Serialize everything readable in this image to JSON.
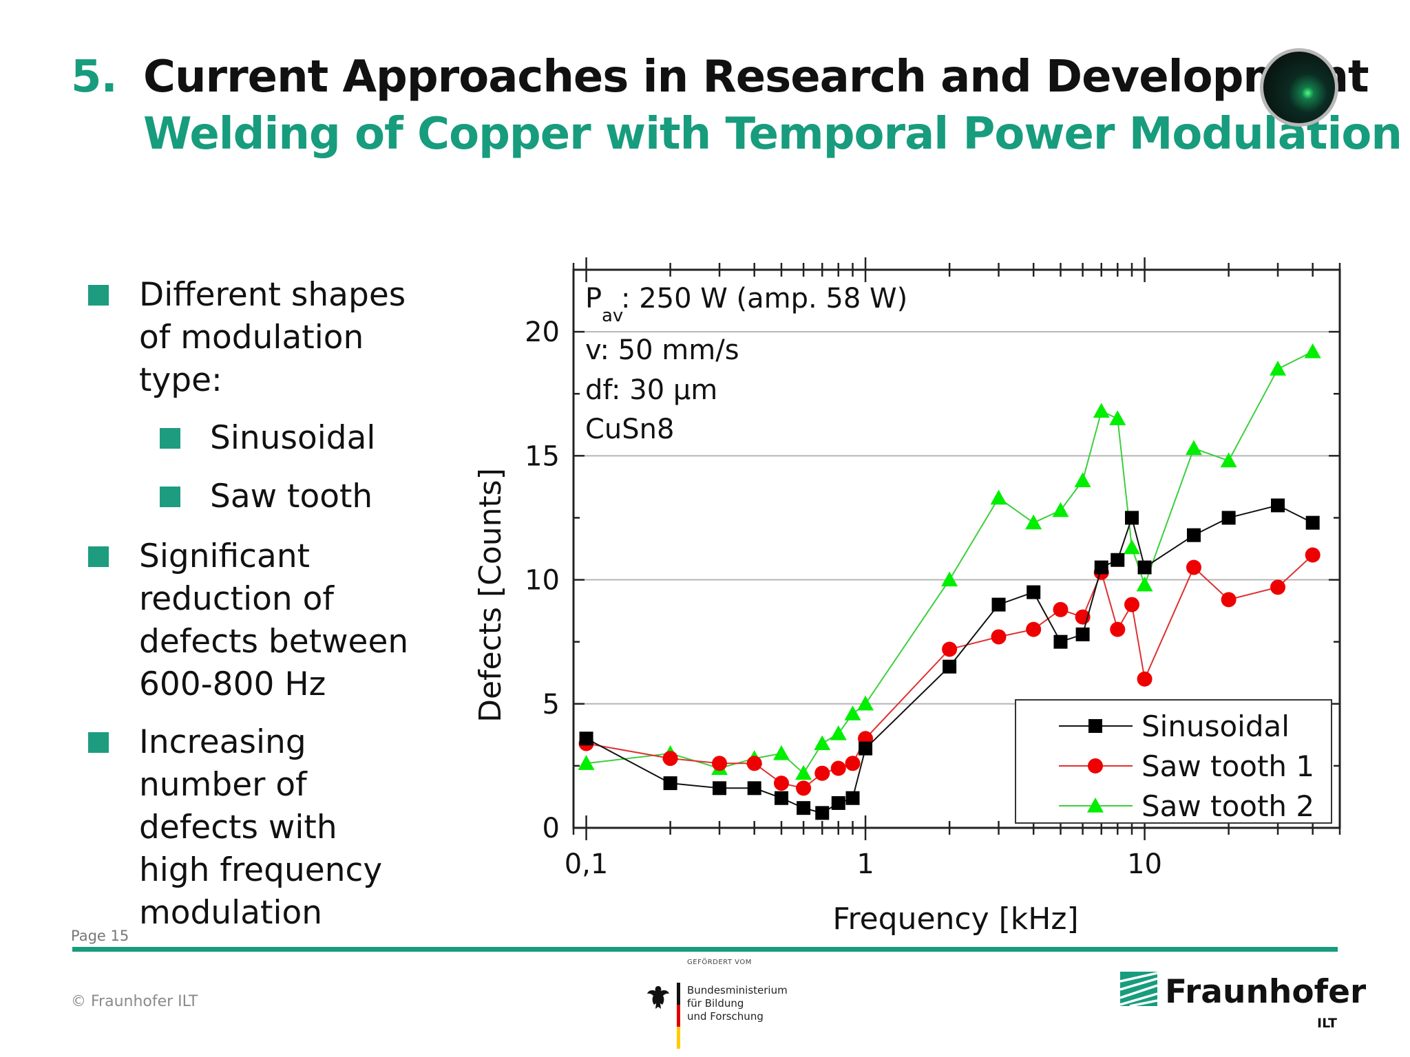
{
  "slide": {
    "number": "5.",
    "title": "Current Approaches in Research and Development",
    "subtitle": "Welding of Copper with Temporal Power Modulation",
    "page_label": "Page 15",
    "copyright": "© Fraunhofer ILT",
    "accent_color": "#179c7d"
  },
  "bullets": {
    "b1_lines": [
      "Different shapes",
      "of modulation",
      "type:"
    ],
    "sub1": "Sinusoidal",
    "sub2": "Saw tooth",
    "b2_lines": [
      "Significant",
      "reduction of",
      "defects between",
      "600-800 Hz"
    ],
    "b3_lines": [
      "Increasing",
      "number of",
      "defects with",
      "high frequency",
      "modulation"
    ]
  },
  "footer": {
    "bmbf_top": "GEFÖRDERT VOM",
    "bmbf_lines": [
      "Bundesministerium",
      "für Bildung",
      "und Forschung"
    ],
    "fraunhofer_name": "Fraunhofer",
    "fraunhofer_sub": "ILT",
    "eagle_icon": "federal-eagle-icon"
  },
  "chart_data": {
    "type": "line",
    "xlabel": "Frequency [kHz]",
    "ylabel": "Defects [Counts]",
    "xscale": "log",
    "xlim": [
      0.09,
      50
    ],
    "ylim": [
      0,
      22.5
    ],
    "x_tick_labels": [
      "0,1",
      "1",
      "10"
    ],
    "y_tick_labels": [
      "0",
      "5",
      "10",
      "15",
      "20"
    ],
    "grid": "horizontal",
    "legend_position": "bottom-right",
    "annotations": {
      "pav_main": "P",
      "pav_sub": "av",
      "pav_rest": ": 250 W (amp. 58 W)",
      "velocity": "v: 50 mm/s",
      "focus": "df: 30 µm",
      "material": "CuSn8"
    },
    "series": [
      {
        "name": "Sinusoidal",
        "color": "#000000",
        "line_color": "#111111",
        "marker": "square",
        "x": [
          0.1,
          0.2,
          0.3,
          0.4,
          0.5,
          0.6,
          0.7,
          0.8,
          0.9,
          1,
          2,
          3,
          4,
          5,
          6,
          7,
          8,
          9,
          10,
          15,
          20,
          30,
          40
        ],
        "y": [
          3.6,
          1.8,
          1.6,
          1.6,
          1.2,
          0.8,
          0.6,
          1.0,
          1.2,
          3.2,
          6.5,
          9.0,
          9.5,
          7.5,
          7.8,
          10.5,
          10.8,
          12.5,
          10.5,
          11.8,
          12.5,
          13.0,
          12.3
        ]
      },
      {
        "name": "Saw tooth 1",
        "color": "#ee0000",
        "line_color": "#e03030",
        "marker": "circle",
        "x": [
          0.1,
          0.2,
          0.3,
          0.4,
          0.5,
          0.6,
          0.7,
          0.8,
          0.9,
          1,
          2,
          3,
          4,
          5,
          6,
          7,
          8,
          9,
          10,
          15,
          20,
          30,
          40
        ],
        "y": [
          3.4,
          2.8,
          2.6,
          2.6,
          1.8,
          1.6,
          2.2,
          2.4,
          2.6,
          3.6,
          7.2,
          7.7,
          8.0,
          8.8,
          8.5,
          10.3,
          8.0,
          9.0,
          6.0,
          10.5,
          9.2,
          9.7,
          11.0
        ]
      },
      {
        "name": "Saw tooth 2",
        "color": "#00ee00",
        "line_color": "#3ccf3c",
        "marker": "triangle",
        "x": [
          0.1,
          0.2,
          0.3,
          0.4,
          0.5,
          0.6,
          0.7,
          0.8,
          0.9,
          1,
          2,
          3,
          4,
          5,
          6,
          7,
          8,
          9,
          10,
          15,
          20,
          30,
          40
        ],
        "y": [
          2.6,
          3.0,
          2.4,
          2.8,
          3.0,
          2.2,
          3.4,
          3.8,
          4.6,
          5.0,
          10.0,
          13.3,
          12.3,
          12.8,
          14.0,
          16.8,
          16.5,
          11.3,
          9.8,
          15.3,
          14.8,
          18.5,
          19.2
        ]
      }
    ]
  }
}
